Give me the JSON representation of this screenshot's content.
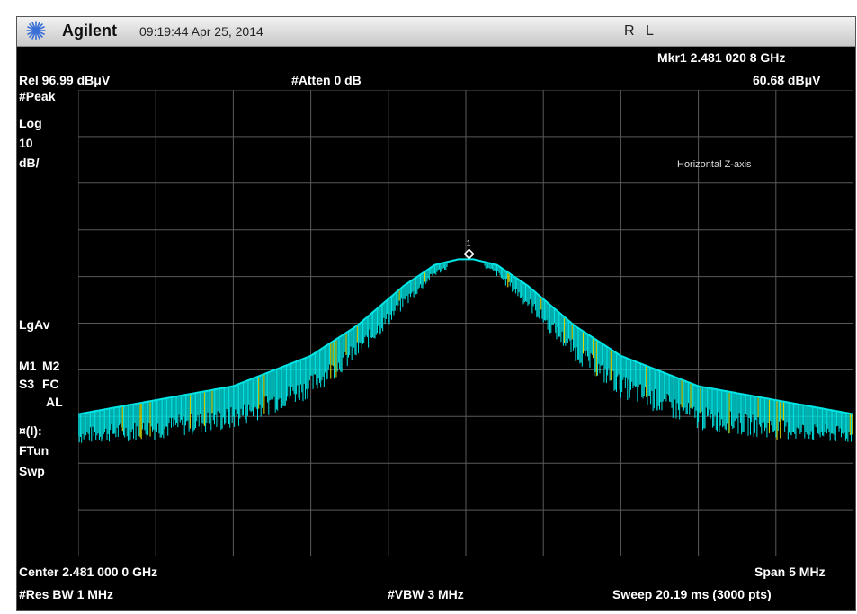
{
  "header": {
    "brand": "Agilent",
    "datetime": "09:19:44  Apr 25, 2014",
    "rl": "R L",
    "icon": "agilent-spark-icon"
  },
  "annotations": {
    "marker": "Mkr1  2.481 020 8 GHz",
    "ref_level": "Rel 96.99 dBμV",
    "atten": "#Atten 0 dB",
    "marker_amp": "60.68 dBμV",
    "left_labels": [
      "#Peak",
      "Log",
      "10",
      "dB/"
    ],
    "lgav": "LgAv",
    "m1": "M1",
    "m2": "M2",
    "s3": "S3",
    "fc": "FC",
    "al": "AL",
    "trig": "¤(I):",
    "ftun": "FTun",
    "swp": "Swp",
    "plot_note": "Horizontal Z-axis",
    "center": "Center 2.481 000 0 GHz",
    "span": "Span 5 MHz",
    "res_bw": "#Res BW 1 MHz",
    "vbw": "#VBW 3 MHz",
    "sweep": "Sweep 20.19 ms (3000 pts)"
  },
  "colors": {
    "trace": "#00e5e5",
    "trace_secondary": "#e6e600",
    "grid": "#5a5a5a",
    "background": "#000000",
    "marker": "#ffffff"
  },
  "chart_data": {
    "type": "line",
    "title": "",
    "xlabel": "",
    "ylabel": "",
    "x_unit": "GHz",
    "y_unit": "dBμV",
    "xlim": [
      2.4785,
      2.4835
    ],
    "ylim": [
      -3.01,
      96.99
    ],
    "grid": true,
    "grid_divisions": [
      10,
      10
    ],
    "legend": "none",
    "marker": {
      "label": "1",
      "x": 2.4810208,
      "y": 60.68
    },
    "series": [
      {
        "x": [
          2.4785,
          2.479,
          2.4795,
          2.48,
          2.4803,
          2.4806,
          2.4808,
          2.48095,
          2.48105,
          2.4812,
          2.4814,
          2.4817,
          2.482,
          2.4825,
          2.483,
          2.4835
        ],
        "values": [
          27.5,
          30.5,
          33.5,
          40.0,
          46.5,
          55.0,
          59.5,
          60.68,
          60.68,
          59.5,
          55.0,
          46.5,
          40.0,
          33.5,
          30.5,
          27.5
        ],
        "noise_floor": [
          21.0,
          22.0,
          24.0,
          31.0,
          39.0,
          50.0,
          57.0,
          60.0,
          60.0,
          57.0,
          50.0,
          39.0,
          31.0,
          24.0,
          22.0,
          21.0
        ]
      }
    ]
  }
}
